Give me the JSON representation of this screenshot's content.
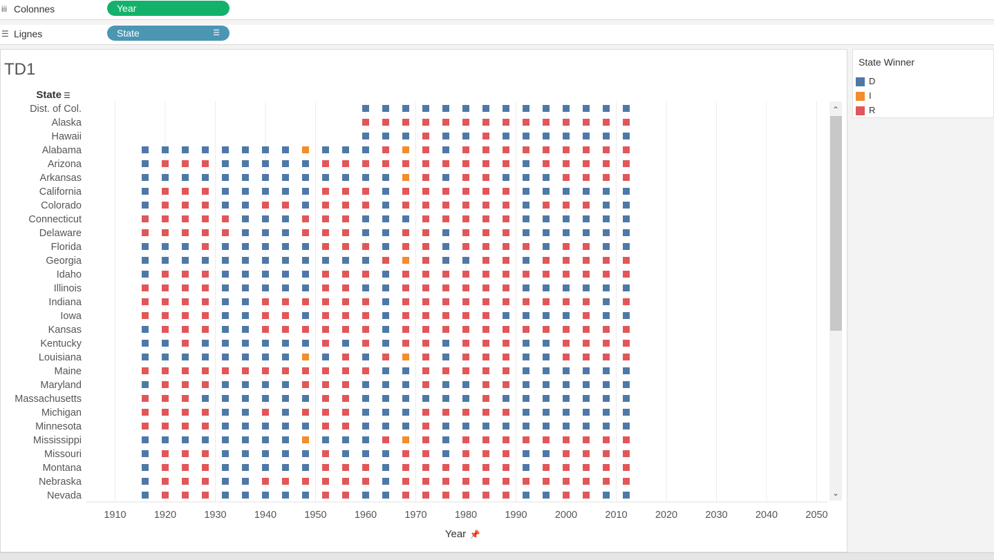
{
  "shelves": {
    "columns": {
      "label": "Colonnes",
      "pill": "Year",
      "color": "#12b26b"
    },
    "rows": {
      "label": "Lignes",
      "pill": "State",
      "color": "#4a96b3"
    }
  },
  "sheet": {
    "title": "TD1"
  },
  "legend": {
    "title": "State Winner",
    "items": [
      {
        "label": "D",
        "color": "#4e79a7"
      },
      {
        "label": "I",
        "color": "#f28e2b"
      },
      {
        "label": "R",
        "color": "#e15759"
      }
    ]
  },
  "chart_data": {
    "type": "scatter",
    "row_header": "State",
    "xlabel": "Year",
    "xlim": [
      1904,
      2056
    ],
    "x_ticks": [
      1910,
      1920,
      1930,
      1940,
      1950,
      1960,
      1970,
      1980,
      1990,
      2000,
      2010,
      2020,
      2030,
      2040,
      2050
    ],
    "years": [
      1916,
      1920,
      1924,
      1928,
      1932,
      1936,
      1940,
      1944,
      1948,
      1952,
      1956,
      1960,
      1964,
      1968,
      1972,
      1976,
      1980,
      1984,
      1988,
      1992,
      1996,
      2000,
      2004,
      2008,
      2012
    ],
    "colors": {
      "D": "#4e79a7",
      "I": "#f28e2b",
      "R": "#e15759"
    },
    "states": [
      {
        "name": "Dist. of Col.",
        "w": "-----------DDDDDDDDDDDDDD"
      },
      {
        "name": "Alaska",
        "w": "-----------RRRRRRRRRRRRRR"
      },
      {
        "name": "Hawaii",
        "w": "-----------DDDRDDRDDDDDDD"
      },
      {
        "name": "Alabama",
        "w": "DDDDDDDDIDDDRIRDRRRRRRRRR"
      },
      {
        "name": "Arizona",
        "w": "DRRRDDDDDRRRRRRRRRRDRRRRR"
      },
      {
        "name": "Arkansas",
        "w": "DDDDDDDDDDDDDIRDRRDDDRRRR"
      },
      {
        "name": "California",
        "w": "DRRRDDDDDRRRDRRRRRRDDDDDD"
      },
      {
        "name": "Colorado",
        "w": "DRRRDDRRDRRRDRRRRRRDRRRDD"
      },
      {
        "name": "Connecticut",
        "w": "RRRRRDDDRRRDDDRRRRRDDDDDD"
      },
      {
        "name": "Delaware",
        "w": "RRRRRDDDRRRDDRRDRRRDDDDDD"
      },
      {
        "name": "Florida",
        "w": "DDDRDDDDDRRRDRRDRRRRDRRDD"
      },
      {
        "name": "Georgia",
        "w": "DDDDDDDDDDDDRIRDDRRDRRRRR"
      },
      {
        "name": "Idaho",
        "w": "DRRRDDDDDRRRDRRRRRRRRRRRR"
      },
      {
        "name": "Illinois",
        "w": "RRRRDDDDDRRDDRRRRRRDDDDDD"
      },
      {
        "name": "Indiana",
        "w": "RRRRDDRRRRRRDRRRRRRRRRRDR"
      },
      {
        "name": "Iowa",
        "w": "RRRRDDRRDRRRDRRRRRDDDDRDD"
      },
      {
        "name": "Kansas",
        "w": "DRRRDDRRRRRRDRRRRRRRRRRRR"
      },
      {
        "name": "Kentucky",
        "w": "DDRDDDDDDRDRDRRDRRRDDRRRR"
      },
      {
        "name": "Louisiana",
        "w": "DDDDDDDDIDRDRIRDRRRDDRRRR"
      },
      {
        "name": "Maine",
        "w": "RRRRRRRRRRRRDDRRRRRDDDDDD"
      },
      {
        "name": "Maryland",
        "w": "DRRRDDDDRRRDDDRDDRRDDDDDD"
      },
      {
        "name": "Massachusetts",
        "w": "RRRDDDDDDRRDDDDDDRDDDDDDD"
      },
      {
        "name": "Michigan",
        "w": "RRRRDDRDRRRDDDRRRRRDDDDDD"
      },
      {
        "name": "Minnesota",
        "w": "RRRRDDDDDRRDDDRDDDDDDDDDD"
      },
      {
        "name": "Mississippi",
        "w": "DDDDDDDDIDDDRIRDRRRRRRRRR"
      },
      {
        "name": "Missouri",
        "w": "DRRRDDDDDRDDDRRDRRRDDRRRR"
      },
      {
        "name": "Montana",
        "w": "DRRRDDDDDRRRDRRRRRRDRRRRR"
      },
      {
        "name": "Nebraska",
        "w": "DRRRDDRRRRRRDRRRRRRRRRRRR"
      },
      {
        "name": "Nevada",
        "w": "DRRRDDDDDRRDDRRRRRRDDRRDD"
      }
    ]
  }
}
